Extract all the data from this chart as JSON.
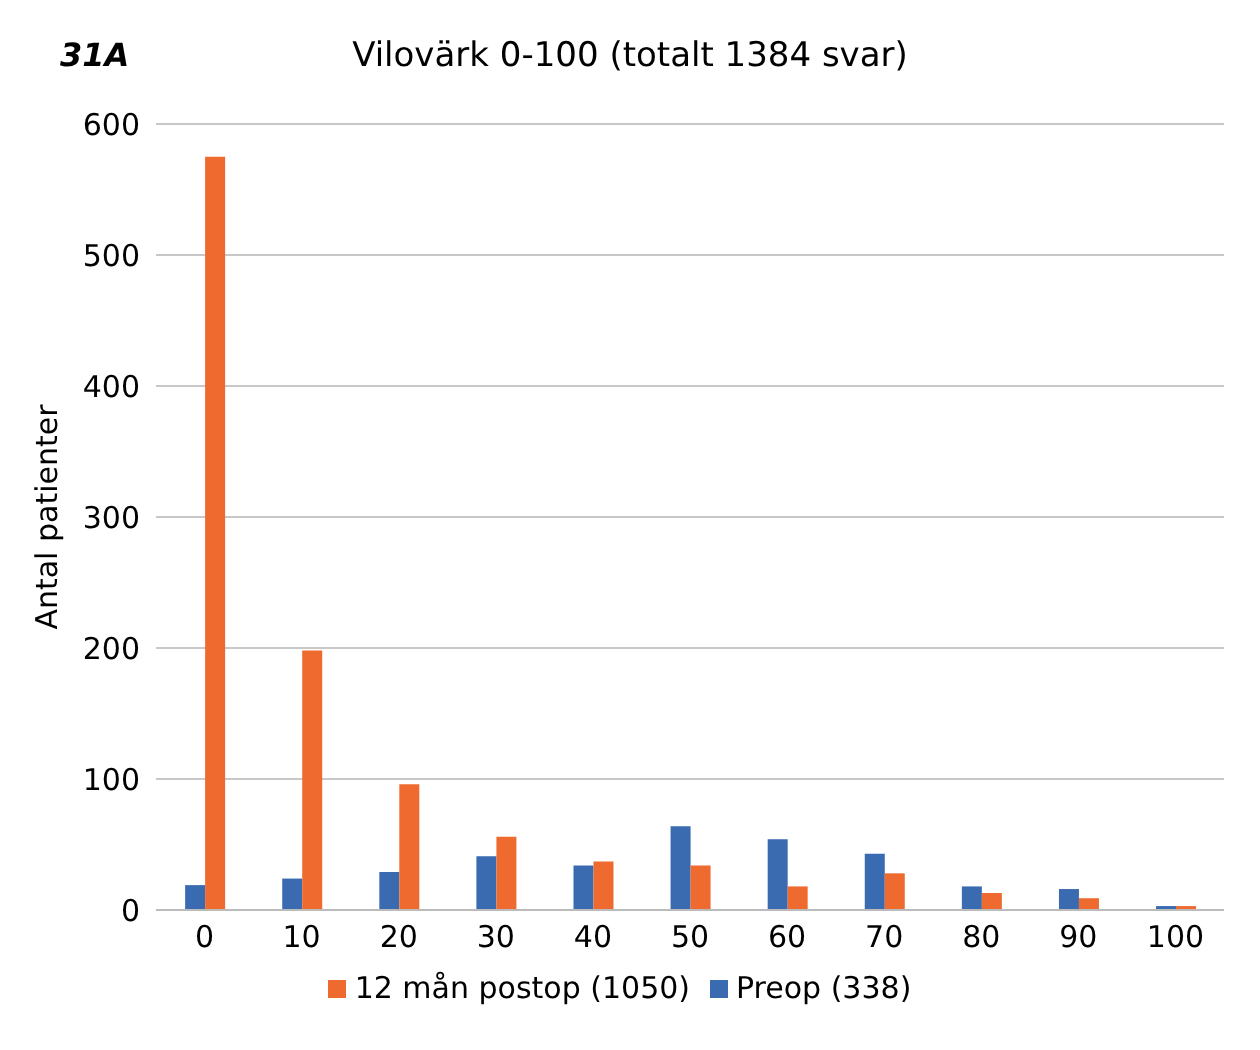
{
  "chart_data": {
    "type": "bar",
    "title": "Vilovärk 0-100 (totalt 1384 svar)",
    "annotations": [
      "31A"
    ],
    "ylabel": "Antal patienter",
    "categories": [
      "0",
      "10",
      "20",
      "30",
      "40",
      "50",
      "60",
      "70",
      "80",
      "90",
      "100"
    ],
    "series": [
      {
        "name": "Preop (338)",
        "color": "#3a6ab0",
        "values": [
          19,
          24,
          29,
          41,
          34,
          64,
          54,
          43,
          18,
          16,
          3
        ]
      },
      {
        "name": "12 mån postop (1050)",
        "color": "#ee6a2f",
        "values": [
          575,
          198,
          96,
          56,
          37,
          34,
          18,
          28,
          13,
          9,
          3
        ]
      }
    ],
    "ylim": [
      0,
      600
    ],
    "yticks": [
      0,
      100,
      200,
      300,
      400,
      500,
      600
    ],
    "grid": "y",
    "legend": "bottom"
  }
}
